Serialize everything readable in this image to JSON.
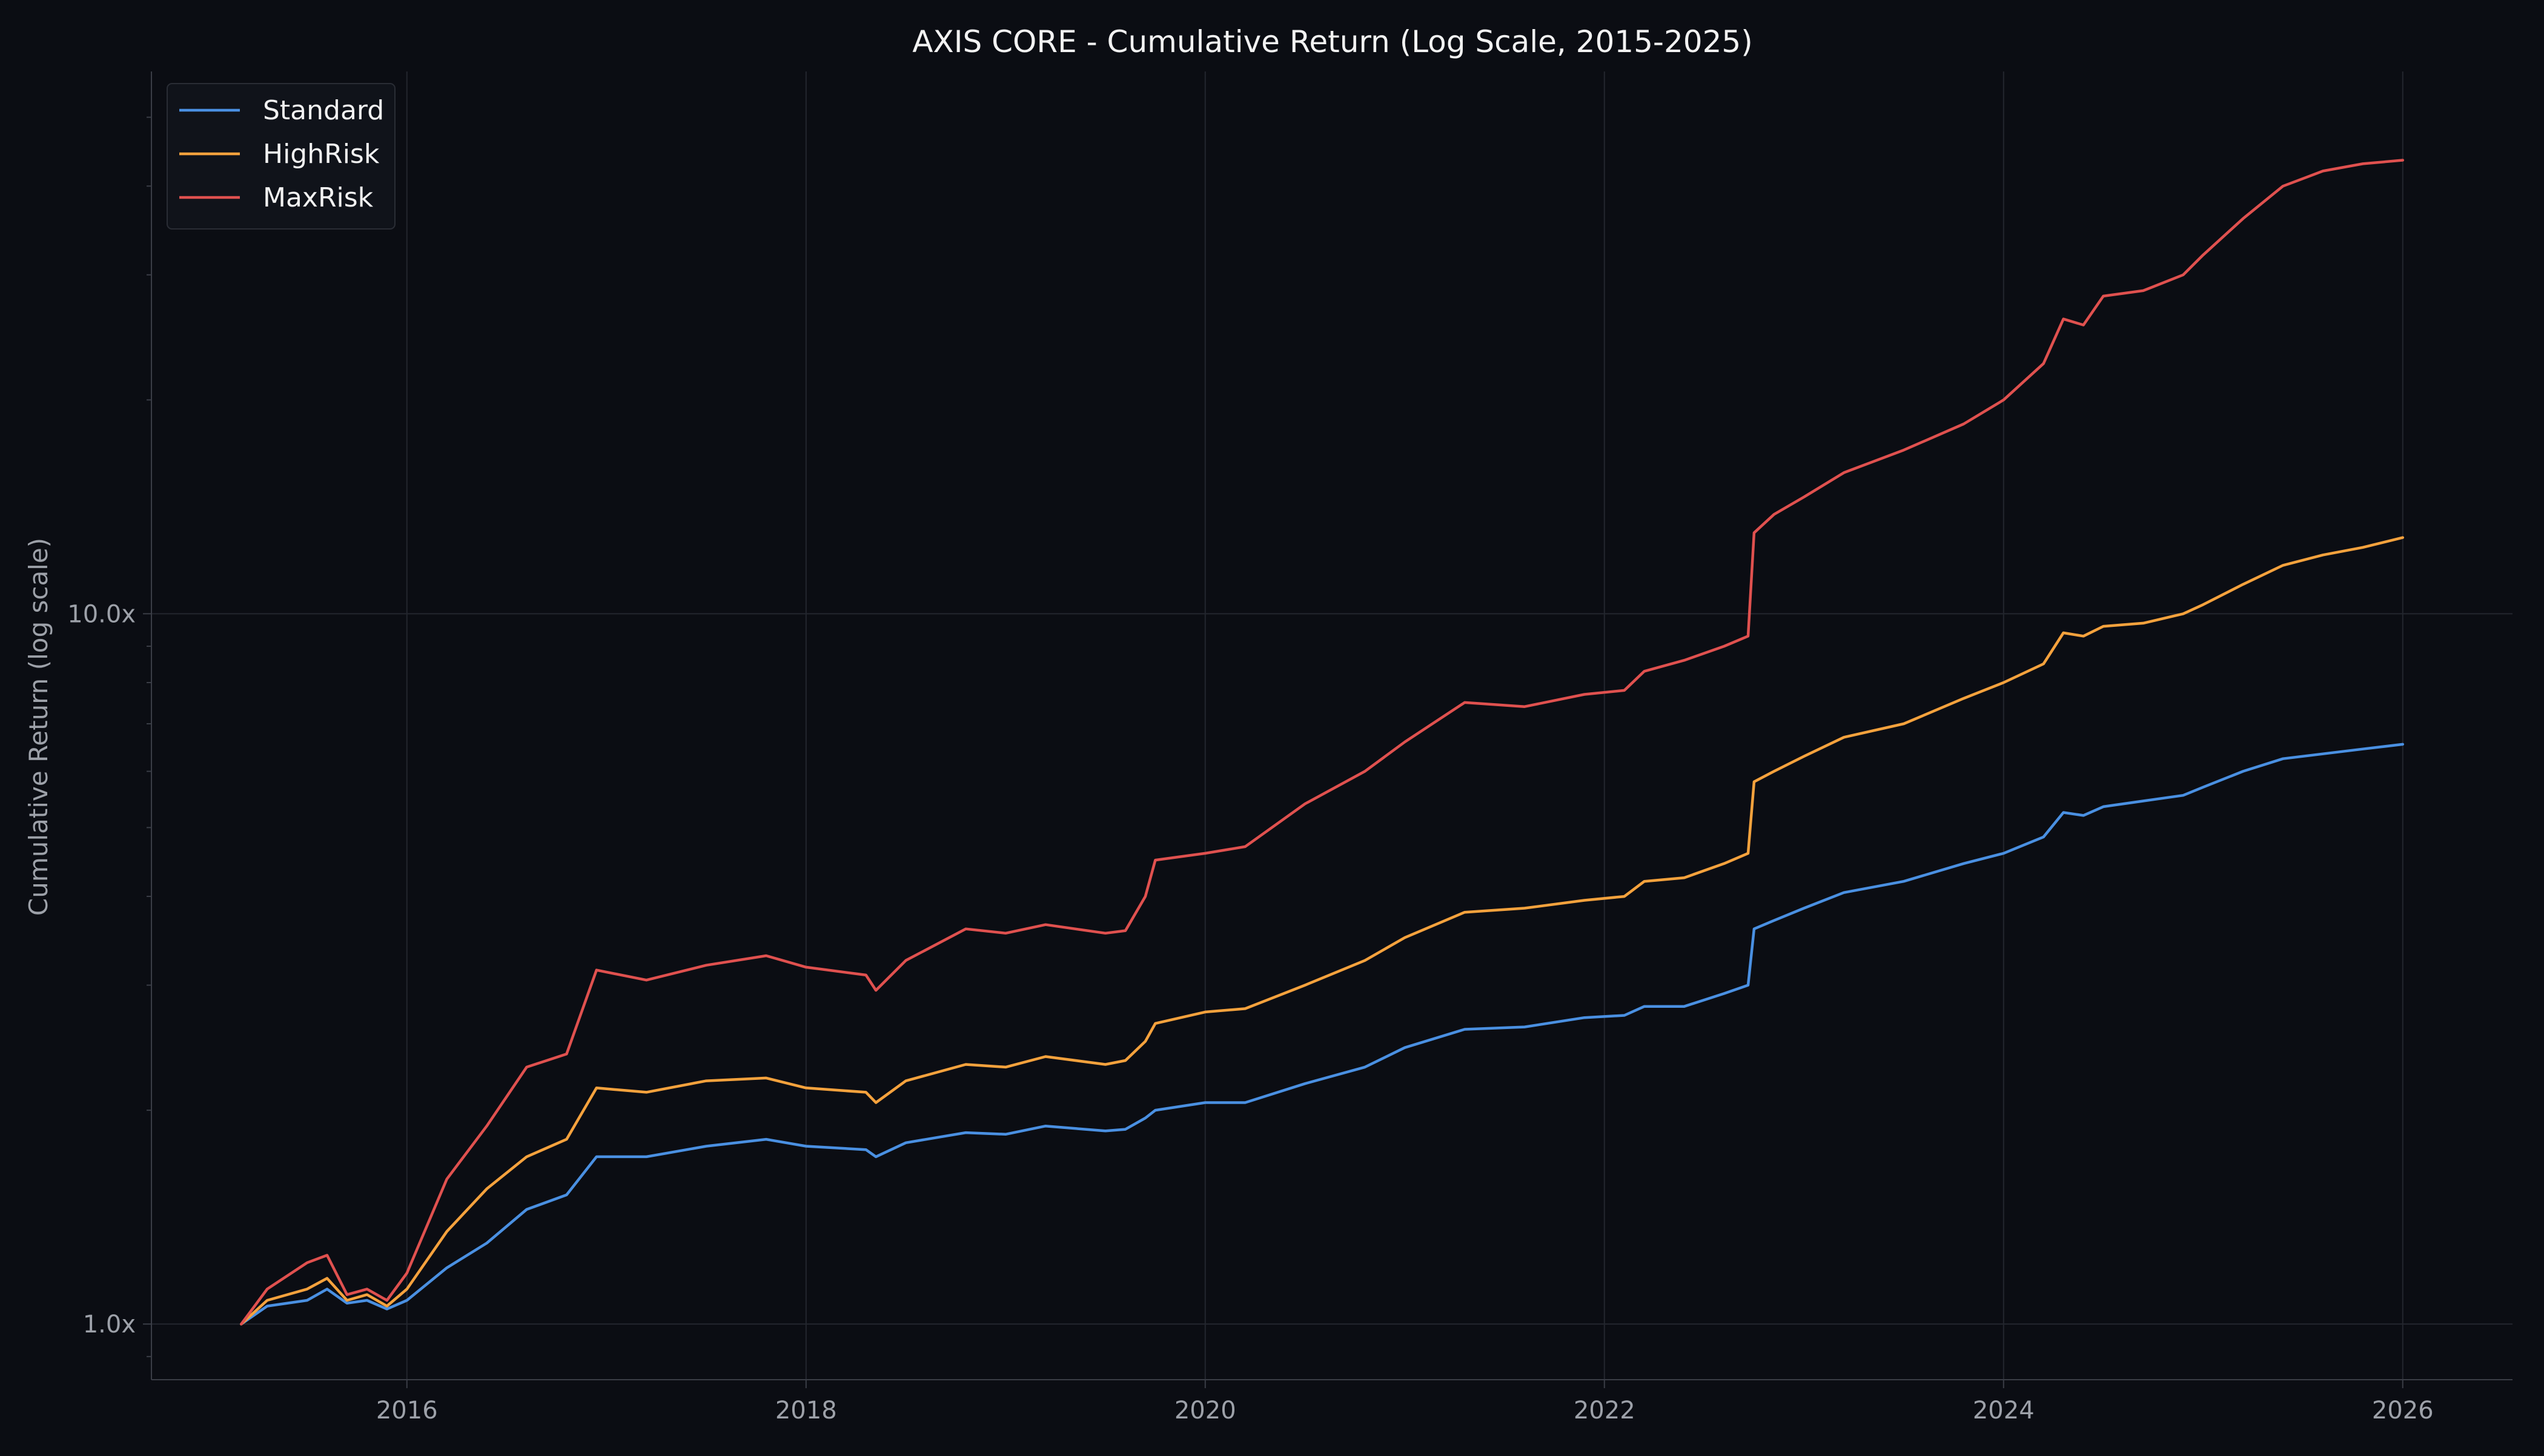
{
  "chart_data": {
    "type": "line",
    "title": "AXIS CORE - Cumulative Return (Log Scale, 2015-2025)",
    "xlabel": "",
    "ylabel": "Cumulative Return (log scale)",
    "yscale": "log",
    "xlim": [
      2014.72,
      2026.55
    ],
    "ylim": [
      0.835,
      58
    ],
    "grid": true,
    "legend_position": "top-left",
    "x_ticks": [
      2016,
      2018,
      2020,
      2022,
      2024,
      2026
    ],
    "x_tick_labels": [
      "2016",
      "2018",
      "2020",
      "2022",
      "2024",
      "2026"
    ],
    "y_ticks": [
      1,
      10
    ],
    "y_tick_labels": [
      "1.0x",
      "10.0x"
    ],
    "y_minor_ticks": [
      0.9,
      2,
      3,
      4,
      5,
      6,
      7,
      8,
      9,
      20,
      30,
      40,
      50
    ],
    "colors": {
      "background": "#0b0d13",
      "grid": "#23262e",
      "axis": "#3a3d46",
      "text": "#f2f2f2",
      "muted_text": "#9da1a9",
      "legend_bg": "#10131a",
      "legend_border": "#2a2d35"
    },
    "series": [
      {
        "name": "Standard",
        "color": "#4a90e2",
        "x": [
          2015.17,
          2015.3,
          2015.5,
          2015.6,
          2015.7,
          2015.8,
          2015.9,
          2016.0,
          2016.2,
          2016.4,
          2016.6,
          2016.8,
          2016.95,
          2017.2,
          2017.5,
          2017.8,
          2018.0,
          2018.3,
          2018.35,
          2018.5,
          2018.8,
          2019.0,
          2019.2,
          2019.5,
          2019.6,
          2019.7,
          2019.75,
          2020.0,
          2020.2,
          2020.5,
          2020.8,
          2021.0,
          2021.3,
          2021.6,
          2021.9,
          2022.1,
          2022.2,
          2022.4,
          2022.6,
          2022.72,
          2022.75,
          2022.85,
          2023.0,
          2023.2,
          2023.5,
          2023.8,
          2024.0,
          2024.2,
          2024.3,
          2024.4,
          2024.5,
          2024.7,
          2024.9,
          2025.0,
          2025.2,
          2025.4,
          2025.6,
          2025.8,
          2026.0
        ],
        "values": [
          1.0,
          1.06,
          1.08,
          1.12,
          1.07,
          1.08,
          1.05,
          1.08,
          1.2,
          1.3,
          1.45,
          1.52,
          1.72,
          1.72,
          1.78,
          1.82,
          1.78,
          1.76,
          1.72,
          1.8,
          1.86,
          1.85,
          1.9,
          1.87,
          1.88,
          1.95,
          2.0,
          2.05,
          2.05,
          2.18,
          2.3,
          2.45,
          2.6,
          2.62,
          2.7,
          2.72,
          2.8,
          2.8,
          2.92,
          3.0,
          3.6,
          3.7,
          3.85,
          4.05,
          4.2,
          4.45,
          4.6,
          4.85,
          5.25,
          5.2,
          5.35,
          5.45,
          5.55,
          5.7,
          6.0,
          6.25,
          6.35,
          6.45,
          6.55
        ]
      },
      {
        "name": "HighRisk",
        "color": "#f5a23d",
        "x": [
          2015.17,
          2015.3,
          2015.5,
          2015.6,
          2015.7,
          2015.8,
          2015.9,
          2016.0,
          2016.2,
          2016.4,
          2016.6,
          2016.8,
          2016.95,
          2017.2,
          2017.5,
          2017.8,
          2018.0,
          2018.3,
          2018.35,
          2018.5,
          2018.8,
          2019.0,
          2019.2,
          2019.5,
          2019.6,
          2019.7,
          2019.75,
          2020.0,
          2020.2,
          2020.5,
          2020.8,
          2021.0,
          2021.3,
          2021.6,
          2021.9,
          2022.1,
          2022.2,
          2022.4,
          2022.6,
          2022.72,
          2022.75,
          2022.85,
          2023.0,
          2023.2,
          2023.5,
          2023.8,
          2024.0,
          2024.2,
          2024.3,
          2024.4,
          2024.5,
          2024.7,
          2024.9,
          2025.0,
          2025.2,
          2025.4,
          2025.6,
          2025.8,
          2026.0
        ],
        "values": [
          1.0,
          1.08,
          1.12,
          1.16,
          1.08,
          1.1,
          1.06,
          1.12,
          1.35,
          1.55,
          1.72,
          1.82,
          2.15,
          2.12,
          2.2,
          2.22,
          2.15,
          2.12,
          2.05,
          2.2,
          2.32,
          2.3,
          2.38,
          2.32,
          2.35,
          2.5,
          2.65,
          2.75,
          2.78,
          3.0,
          3.25,
          3.5,
          3.8,
          3.85,
          3.95,
          4.0,
          4.2,
          4.25,
          4.45,
          4.6,
          5.8,
          6.0,
          6.3,
          6.7,
          7.0,
          7.6,
          8.0,
          8.5,
          9.4,
          9.3,
          9.6,
          9.7,
          10.0,
          10.3,
          11.0,
          11.7,
          12.1,
          12.4,
          12.8
        ]
      },
      {
        "name": "MaxRisk",
        "color": "#e0514f",
        "x": [
          2015.17,
          2015.3,
          2015.5,
          2015.6,
          2015.7,
          2015.8,
          2015.9,
          2016.0,
          2016.2,
          2016.4,
          2016.6,
          2016.8,
          2016.95,
          2017.2,
          2017.5,
          2017.8,
          2018.0,
          2018.3,
          2018.35,
          2018.5,
          2018.8,
          2019.0,
          2019.2,
          2019.5,
          2019.6,
          2019.7,
          2019.75,
          2020.0,
          2020.2,
          2020.5,
          2020.8,
          2021.0,
          2021.3,
          2021.6,
          2021.9,
          2022.1,
          2022.2,
          2022.4,
          2022.6,
          2022.72,
          2022.75,
          2022.85,
          2023.0,
          2023.2,
          2023.5,
          2023.8,
          2024.0,
          2024.2,
          2024.3,
          2024.4,
          2024.5,
          2024.7,
          2024.9,
          2025.0,
          2025.2,
          2025.4,
          2025.6,
          2025.8,
          2026.0
        ],
        "values": [
          1.0,
          1.12,
          1.22,
          1.25,
          1.1,
          1.12,
          1.08,
          1.18,
          1.6,
          1.9,
          2.3,
          2.4,
          3.15,
          3.05,
          3.2,
          3.3,
          3.18,
          3.1,
          2.95,
          3.25,
          3.6,
          3.55,
          3.65,
          3.55,
          3.58,
          4.0,
          4.5,
          4.6,
          4.7,
          5.4,
          6.0,
          6.6,
          7.5,
          7.4,
          7.7,
          7.8,
          8.3,
          8.6,
          9.0,
          9.3,
          13.0,
          13.8,
          14.6,
          15.8,
          17.0,
          18.5,
          20.0,
          22.5,
          26.0,
          25.5,
          28.0,
          28.5,
          30.0,
          32.0,
          36.0,
          40.0,
          42.0,
          43.0,
          43.5
        ]
      }
    ]
  }
}
